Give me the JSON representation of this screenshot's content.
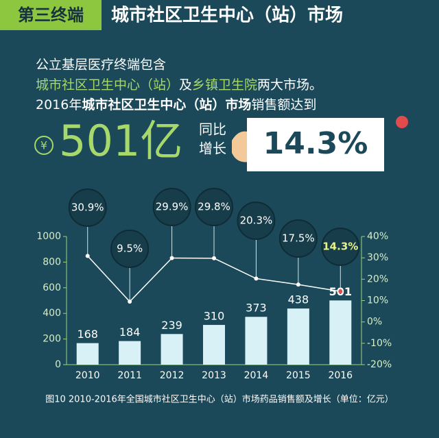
{
  "header": {
    "tag": "第三终端",
    "title": "城市社区卫生中心（站）市场"
  },
  "intro": {
    "line1": "公立基层医疗终端包含",
    "line2": [
      "城市社区卫生中心（站）",
      "及",
      "乡镇卫生院",
      "两大市场。"
    ],
    "line3": [
      "2016年",
      "城市社区卫生中心（站）市场",
      "销售额达到"
    ]
  },
  "headline": {
    "currency": "¥",
    "amount": "501亿",
    "growth_label": [
      "同比",
      "增长"
    ],
    "growth": "14.3%"
  },
  "chart_data": {
    "type": "bar",
    "categories": [
      "2010",
      "2011",
      "2012",
      "2013",
      "2014",
      "2015",
      "2016"
    ],
    "series": [
      {
        "type": "bar",
        "color": "#d8f1f6",
        "values": [
          168,
          184,
          239,
          310,
          373,
          438,
          501
        ]
      },
      {
        "type": "line",
        "axis": "y2",
        "color": "#ffffff",
        "values": [
          30.9,
          9.5,
          29.9,
          29.8,
          20.3,
          17.5,
          14.3
        ],
        "value_labels": [
          "30.9%",
          "9.5%",
          "29.9%",
          "29.8%",
          "20.3%",
          "17.5%",
          "14.3%"
        ]
      }
    ],
    "ylim": [
      0,
      1000
    ],
    "yticks": [
      0,
      200,
      400,
      600,
      800,
      1000
    ],
    "y2lim": [
      -20,
      40
    ],
    "y2ticks": [
      {
        "value": -20,
        "label": "-20%"
      },
      {
        "value": -10,
        "label": "-10%"
      },
      {
        "value": 0,
        "label": "0%"
      },
      {
        "value": 10,
        "label": "10%"
      },
      {
        "value": 20,
        "label": "20%"
      },
      {
        "value": 30,
        "label": "30%"
      },
      {
        "value": 40,
        "label": "40%"
      }
    ],
    "caption": "图10 2010-2016年全国城市社区卫生中心（站）市场药品销售额及增长（单位：亿元）"
  }
}
